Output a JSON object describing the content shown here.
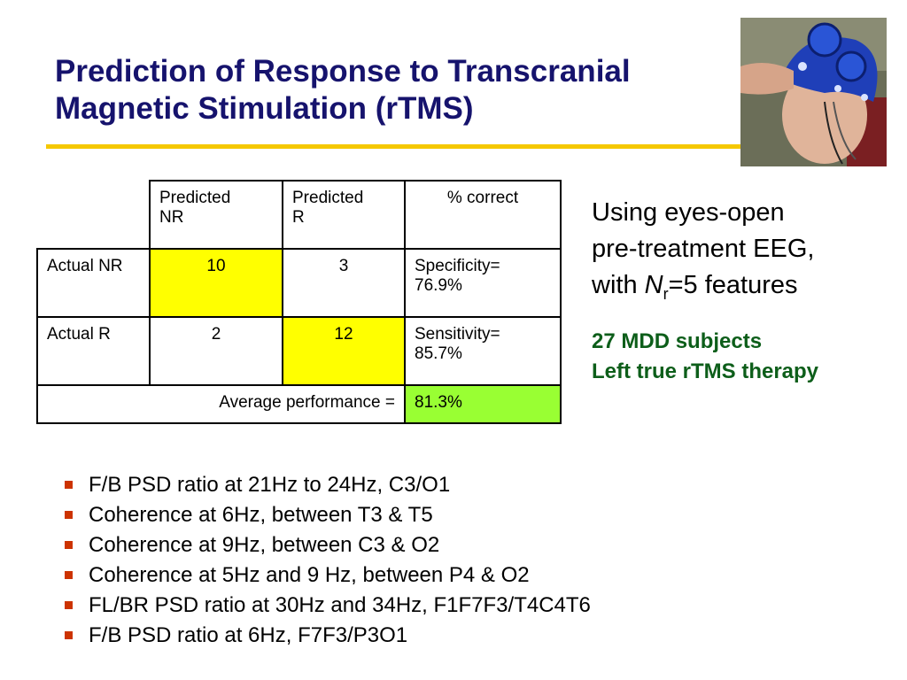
{
  "slide": {
    "title_line1": "Prediction of Response to Transcranial",
    "title_line2": "Magnetic Stimulation (rTMS)",
    "accent_color": "#f5c800",
    "title_color": "#16136d"
  },
  "photo": {
    "icon": "eeg-cap-photo"
  },
  "table": {
    "headers": [
      "",
      "Predicted NR",
      "Predicted R",
      "% correct"
    ],
    "header_lines": {
      "pred_nr": [
        "Predicted",
        "NR"
      ],
      "pred_r": [
        "Predicted",
        "R"
      ],
      "pct": "% correct"
    },
    "rows": [
      {
        "label": "Actual NR",
        "pred_nr": "10",
        "pred_r": "3",
        "metric_label": "Specificity=",
        "metric_value": "76.9%"
      },
      {
        "label": "Actual R",
        "pred_nr": "2",
        "pred_r": "12",
        "metric_label": "Sensitivity=",
        "metric_value": "85.7%"
      }
    ],
    "average_label": "Average performance =",
    "average_value": "81.3%",
    "highlight_color": "#ffff00",
    "average_color": "#99ff33"
  },
  "side": {
    "line1": "Using eyes-open",
    "line2": "pre-treatment EEG,",
    "line3_prefix": "with ",
    "n_symbol": "N",
    "n_sub": "r",
    "line3_suffix": "=5 features",
    "green_line1": "27 MDD subjects",
    "green_line2": "Left true rTMS therapy",
    "green_color": "#0d5e1a"
  },
  "bullets": [
    "F/B PSD ratio at 21Hz to 24Hz, C3/O1",
    "Coherence at 6Hz, between T3 & T5",
    "Coherence at 9Hz, between C3 & O2",
    "Coherence at 5Hz and 9 Hz, between P4 & O2",
    "FL/BR PSD ratio at 30Hz and 34Hz, F1F7F3/T4C4T6",
    "F/B PSD ratio at 6Hz, F7F3/P3O1"
  ],
  "bullet_color": "#cc3300"
}
